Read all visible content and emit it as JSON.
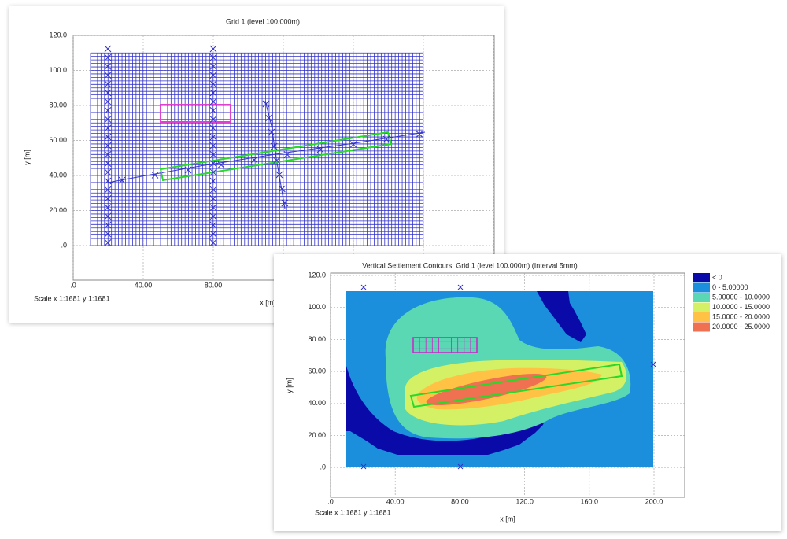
{
  "panels": [
    {
      "title": "Grid 1 (level 100.000m)",
      "y_axis_label": "y [m]",
      "x_axis_label": "x [m]",
      "scale": "Scale x 1:1681  y 1:1681",
      "yticks": [
        "120.0",
        "100.0",
        "80.00",
        "60.00",
        "40.00",
        "20.00",
        ".0"
      ],
      "xticks": [
        ".0",
        "40.00",
        "80.00"
      ]
    },
    {
      "title": "Vertical Settlement Contours: Grid 1 (level 100.000m) (Interval 5mm)",
      "y_axis_label": "y [m]",
      "x_axis_label": "x [m]",
      "scale": "Scale x 1:1681  y 1:1681",
      "yticks": [
        "120.0",
        "100.0",
        "80.00",
        "60.00",
        "40.00",
        "20.00",
        ".0"
      ],
      "xticks": [
        ".0",
        "40.00",
        "80.00",
        "120.0",
        "160.0",
        "200.0"
      ],
      "legend": [
        {
          "label": "< 0",
          "color": "#0a0aa8"
        },
        {
          "label": "0 - 5.00000",
          "color": "#1c8fdc"
        },
        {
          "label": "5.00000 - 10.0000",
          "color": "#5ad8b4"
        },
        {
          "label": "10.0000 - 15.0000",
          "color": "#d4f064"
        },
        {
          "label": "15.0000 - 20.0000",
          "color": "#ffc244"
        },
        {
          "label": "20.0000 - 25.0000",
          "color": "#f07052"
        }
      ]
    }
  ]
}
